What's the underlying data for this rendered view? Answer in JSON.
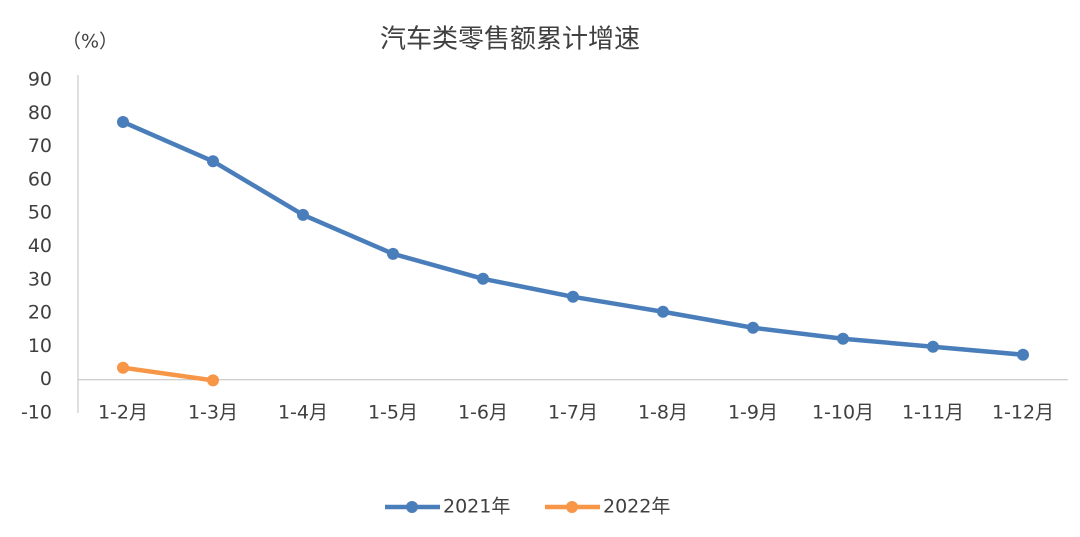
{
  "chart_data": {
    "type": "line",
    "title": "汽车类零售额累计增速",
    "y_label": "（%）",
    "categories": [
      "1-2月",
      "1-3月",
      "1-4月",
      "1-5月",
      "1-6月",
      "1-7月",
      "1-8月",
      "1-9月",
      "1-10月",
      "1-11月",
      "1-12月"
    ],
    "series": [
      {
        "name": "2021年",
        "color": "#4a7ebb",
        "values": [
          77.4,
          65.6,
          49.5,
          37.8,
          30.3,
          24.9,
          20.4,
          15.6,
          12.3,
          9.9,
          7.5
        ]
      },
      {
        "name": "2022年",
        "color": "#f79646",
        "values": [
          3.6,
          -0.2,
          null,
          null,
          null,
          null,
          null,
          null,
          null,
          null,
          null
        ]
      }
    ],
    "ylim": [
      -10,
      90
    ],
    "yticks": [
      -10,
      0,
      10,
      20,
      30,
      40,
      50,
      60,
      70,
      80,
      90
    ],
    "grid": false
  }
}
